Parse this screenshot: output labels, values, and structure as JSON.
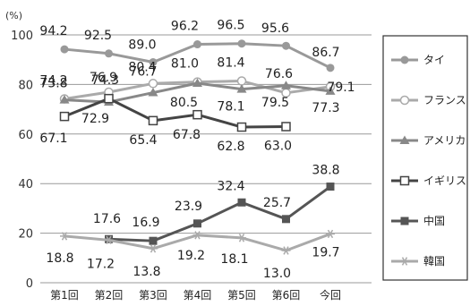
{
  "chart_data": {
    "type": "line",
    "unit": "(%)",
    "categories": [
      "第1回",
      "第2回",
      "第3回",
      "第4回",
      "第5回",
      "第6回",
      "今回"
    ],
    "ylim": [
      0,
      100
    ],
    "yticks": [
      "0",
      "20",
      "40",
      "60",
      "80",
      "100"
    ],
    "grid": true,
    "legend_position": "right",
    "series": [
      {
        "name": "タイ",
        "color": "#999999",
        "marker": "filled-circle",
        "values": [
          94.2,
          92.5,
          89.0,
          96.2,
          96.5,
          95.6,
          86.7
        ],
        "labels": [
          "94.2",
          "92.5",
          "89.0",
          "96.2",
          "96.5",
          "95.6",
          "86.7"
        ]
      },
      {
        "name": "フランス",
        "color": "#aaaaaa",
        "marker": "open-circle",
        "values": [
          74.2,
          76.9,
          80.4,
          81.0,
          81.4,
          76.6,
          79.1
        ],
        "labels": [
          "74.2",
          "76.9",
          "80.4",
          "81.0",
          "81.4",
          "76.6",
          "79.1"
        ]
      },
      {
        "name": "アメリカ",
        "color": "#888888",
        "marker": "filled-triangle",
        "values": [
          73.8,
          72.9,
          76.7,
          80.5,
          78.1,
          79.5,
          77.3
        ],
        "labels": [
          "73.8",
          "72.9",
          "76.7",
          "80.5",
          "78.1",
          "79.5",
          "77.3"
        ]
      },
      {
        "name": "イギリス",
        "color": "#444444",
        "marker": "open-square",
        "values": [
          67.1,
          74.3,
          65.4,
          67.8,
          62.8,
          63.0,
          null
        ],
        "labels": [
          "67.1",
          "74.3",
          "65.4",
          "67.8",
          "62.8",
          "63.0",
          null
        ]
      },
      {
        "name": "中国",
        "color": "#555555",
        "marker": "filled-square",
        "values": [
          null,
          17.6,
          16.9,
          23.9,
          32.4,
          25.7,
          38.8
        ],
        "labels": [
          null,
          "17.6",
          "16.9",
          "23.9",
          "32.4",
          "25.7",
          "38.8"
        ]
      },
      {
        "name": "韓国",
        "color": "#aaaaaa",
        "marker": "asterisk",
        "values": [
          18.8,
          17.2,
          13.8,
          19.2,
          18.1,
          13.0,
          19.7
        ],
        "labels": [
          "18.8",
          "17.2",
          "13.8",
          "19.2",
          "18.1",
          "13.0",
          "19.7"
        ]
      }
    ]
  }
}
